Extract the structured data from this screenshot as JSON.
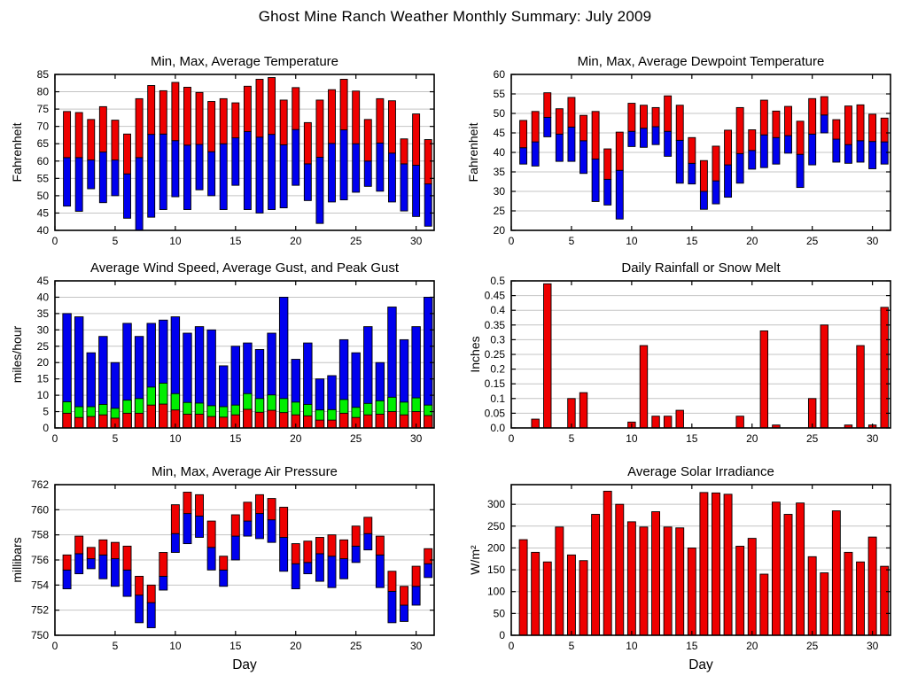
{
  "title": "Ghost Mine Ranch Weather Monthly Summary: July 2009",
  "days": [
    1,
    2,
    3,
    4,
    5,
    6,
    7,
    8,
    9,
    10,
    11,
    12,
    13,
    14,
    15,
    16,
    17,
    18,
    19,
    20,
    21,
    22,
    23,
    24,
    25,
    26,
    27,
    28,
    29,
    30,
    31
  ],
  "colors": {
    "red": "#ee0000",
    "blue": "#0000ee",
    "green": "#00ee00",
    "grid": "#c4c4c4",
    "border": "#000000"
  },
  "chart_data": [
    {
      "id": "temperature",
      "type": "bar",
      "variant": "range",
      "title": "Min, Max, Average Temperature",
      "ylabel": "Fahrenheit",
      "xlabel": "",
      "xlim": [
        0,
        31.5
      ],
      "ylim": [
        40,
        85
      ],
      "xticks": [
        0,
        5,
        10,
        15,
        20,
        25,
        30
      ],
      "xtick_labels": [
        "0",
        "5",
        "10",
        "15",
        "20",
        "25",
        "30"
      ],
      "yticks": [
        40,
        45,
        50,
        55,
        60,
        65,
        70,
        75,
        80,
        85
      ],
      "ytick_labels": [
        "40",
        "45",
        "50",
        "55",
        "60",
        "65",
        "70",
        "75",
        "80",
        "85"
      ],
      "segment_colors": {
        "low": "#0000ee",
        "high": "#ee0000"
      },
      "series": [
        {
          "name": "Min",
          "values": [
            47,
            45.5,
            52,
            48,
            50,
            43.5,
            40,
            43.8,
            46,
            49.7,
            46,
            51.7,
            50,
            46,
            53,
            46,
            45,
            46,
            46.5,
            53,
            48.6,
            42,
            48.2,
            48.8,
            51,
            52.7,
            51.3,
            48.2,
            45.6,
            44,
            41.2
          ]
        },
        {
          "name": "Average",
          "values": [
            61,
            61,
            60.3,
            62.6,
            60.3,
            56.3,
            61,
            67.7,
            67.8,
            65.9,
            64.6,
            64.8,
            62.7,
            65,
            66.7,
            68.5,
            66.9,
            67.7,
            64.7,
            69.1,
            59.2,
            61.1,
            65.1,
            69,
            65,
            60,
            65.2,
            62.3,
            59.2,
            58.8,
            53.4
          ]
        },
        {
          "name": "Max",
          "values": [
            74.3,
            74,
            72,
            75.7,
            71.8,
            67.8,
            78,
            81.8,
            80.3,
            82.7,
            81.3,
            79.8,
            77.2,
            78,
            76.8,
            81.6,
            83.6,
            84.1,
            77.6,
            81.2,
            71.1,
            77.6,
            80.6,
            83.6,
            80.2,
            72,
            78,
            77.4,
            66.4,
            73.6,
            66.2
          ]
        }
      ]
    },
    {
      "id": "dewpoint",
      "type": "bar",
      "variant": "range",
      "title": "Min, Max, Average Dewpoint Temperature",
      "ylabel": "Fahrenheit",
      "xlabel": "",
      "xlim": [
        0,
        31.5
      ],
      "ylim": [
        20,
        60
      ],
      "xticks": [
        0,
        5,
        10,
        15,
        20,
        25,
        30
      ],
      "xtick_labels": [
        "0",
        "5",
        "10",
        "15",
        "20",
        "25",
        "30"
      ],
      "yticks": [
        20,
        25,
        30,
        35,
        40,
        45,
        50,
        55,
        60
      ],
      "ytick_labels": [
        "20",
        "25",
        "30",
        "35",
        "40",
        "45",
        "50",
        "55",
        "60"
      ],
      "segment_colors": {
        "low": "#0000ee",
        "high": "#ee0000"
      },
      "series": [
        {
          "name": "Min",
          "values": [
            37,
            36.5,
            44,
            37.7,
            37.7,
            34.6,
            27.4,
            26.5,
            22.9,
            41.5,
            41.3,
            42,
            39,
            32.1,
            31.9,
            25.4,
            26.8,
            28.5,
            32.1,
            35.7,
            36.1,
            37,
            39.8,
            31,
            36.8,
            45,
            37.5,
            37.2,
            37.5,
            35.8,
            37
          ]
        },
        {
          "name": "Average",
          "values": [
            41.2,
            42.7,
            49,
            44.7,
            46.5,
            43,
            38.3,
            33.1,
            35.4,
            45.4,
            46.2,
            46.6,
            45.4,
            43.1,
            37.2,
            30,
            32.7,
            36.8,
            39.7,
            40.5,
            44.5,
            43.8,
            44.3,
            39.5,
            44.7,
            49.6,
            43.4,
            42,
            43,
            42.8,
            42.7
          ]
        },
        {
          "name": "Max",
          "values": [
            48.2,
            50.5,
            55.3,
            51.2,
            54.1,
            49.5,
            50.5,
            40.9,
            45.2,
            52.6,
            52.1,
            51.5,
            54.5,
            52.1,
            43.8,
            37.9,
            41.6,
            45.7,
            51.5,
            45.8,
            53.4,
            50.6,
            51.8,
            48,
            53.8,
            54.3,
            48.4,
            51.9,
            52.2,
            49.8,
            48.8
          ]
        }
      ]
    },
    {
      "id": "wind",
      "type": "bar",
      "variant": "overlay",
      "title": "Average Wind Speed, Average Gust, and Peak Gust",
      "ylabel": "miles/hour",
      "xlabel": "",
      "xlim": [
        0,
        31.5
      ],
      "ylim": [
        0,
        45
      ],
      "xticks": [
        0,
        5,
        10,
        15,
        20,
        25,
        30
      ],
      "xtick_labels": [
        "0",
        "5",
        "10",
        "15",
        "20",
        "25",
        "30"
      ],
      "yticks": [
        0,
        5,
        10,
        15,
        20,
        25,
        30,
        35,
        40,
        45
      ],
      "ytick_labels": [
        "0",
        "5",
        "10",
        "15",
        "20",
        "25",
        "30",
        "35",
        "40",
        "45"
      ],
      "series": [
        {
          "name": "Average Wind Speed",
          "color": "#ee0000",
          "values": [
            4.5,
            3.2,
            3.5,
            4,
            3,
            4.5,
            4.5,
            7,
            7.3,
            5.5,
            4.2,
            4.2,
            3.5,
            3.3,
            4,
            5.7,
            4.8,
            5.4,
            4.7,
            4,
            3.7,
            2.4,
            2.4,
            4.5,
            3.2,
            4,
            4.2,
            5,
            4,
            5,
            3.8
          ]
        },
        {
          "name": "Average Gust",
          "color": "#00ee00",
          "values": [
            8,
            6.5,
            6.5,
            7.2,
            6,
            8.5,
            9,
            12.5,
            13.7,
            10.5,
            7.8,
            7.6,
            6.8,
            6.5,
            7,
            10.5,
            9,
            10.1,
            9,
            7.9,
            7.2,
            5.5,
            5.6,
            8.7,
            6.3,
            7.5,
            8.3,
            9.4,
            7.9,
            9.2,
            7
          ]
        },
        {
          "name": "Peak Gust",
          "color": "#0000ee",
          "values": [
            35,
            34,
            23,
            28,
            20,
            32,
            28,
            32,
            33,
            34,
            29,
            31,
            30,
            19,
            25,
            26,
            24,
            29,
            40,
            21,
            26,
            15,
            16,
            27,
            23,
            31,
            20,
            37,
            27,
            31,
            40
          ]
        }
      ]
    },
    {
      "id": "rain",
      "type": "bar",
      "variant": "single",
      "title": "Daily Rainfall or Snow Melt",
      "ylabel": "Inches",
      "xlabel": "",
      "xlim": [
        0,
        31.5
      ],
      "ylim": [
        0,
        0.5
      ],
      "xticks": [
        0,
        5,
        10,
        15,
        20,
        25,
        30
      ],
      "xtick_labels": [
        "0",
        "5",
        "10",
        "15",
        "20",
        "25",
        "30"
      ],
      "yticks": [
        0,
        0.05,
        0.1,
        0.15,
        0.2,
        0.25,
        0.3,
        0.35,
        0.4,
        0.45,
        0.5
      ],
      "ytick_labels": [
        "0.0",
        "0.05",
        "0.1",
        "0.15",
        "0.2",
        "0.25",
        "0.3",
        "0.35",
        "0.4",
        "0.45",
        "0.5"
      ],
      "color": "#ee0000",
      "values": [
        0,
        0.03,
        0.49,
        0,
        0.1,
        0.12,
        0,
        0,
        0,
        0.02,
        0.28,
        0.04,
        0.04,
        0.06,
        0,
        0,
        0,
        0,
        0.04,
        0,
        0.33,
        0.01,
        0,
        0,
        0.1,
        0.35,
        0,
        0.01,
        0.28,
        0.01,
        0.41
      ]
    },
    {
      "id": "pressure",
      "type": "bar",
      "variant": "range",
      "title": "Min, Max, Average Air Pressure",
      "ylabel": "millibars",
      "xlabel": "Day",
      "xlim": [
        0,
        31.5
      ],
      "ylim": [
        750,
        762
      ],
      "xticks": [
        0,
        5,
        10,
        15,
        20,
        25,
        30
      ],
      "xtick_labels": [
        "0",
        "5",
        "10",
        "15",
        "20",
        "25",
        "30"
      ],
      "yticks": [
        750,
        752,
        754,
        756,
        758,
        760,
        762
      ],
      "ytick_labels": [
        "750",
        "752",
        "754",
        "756",
        "758",
        "760",
        "762"
      ],
      "segment_colors": {
        "low": "#0000ee",
        "high": "#ee0000"
      },
      "series": [
        {
          "name": "Min",
          "values": [
            753.7,
            754.9,
            755.3,
            754.5,
            753.9,
            753.1,
            751,
            750.6,
            753.6,
            756.6,
            757.3,
            757.8,
            755.2,
            753.9,
            756,
            757.9,
            757.7,
            757.4,
            755.1,
            753.7,
            754.9,
            754.3,
            753.8,
            754.5,
            755.8,
            756.8,
            753.8,
            751,
            751.1,
            752.4,
            754.6
          ]
        },
        {
          "name": "Average",
          "values": [
            755.2,
            756.5,
            756.1,
            756.4,
            756.1,
            755.2,
            753.2,
            752.6,
            754.7,
            758.1,
            759.7,
            759.5,
            757,
            755.2,
            757.9,
            759.1,
            759.7,
            759.2,
            757.8,
            755.7,
            755.8,
            756.5,
            756.3,
            756.1,
            757.1,
            758.1,
            756.4,
            753.5,
            752.4,
            753.9,
            755.7
          ]
        },
        {
          "name": "Max",
          "values": [
            756.4,
            757.9,
            757,
            757.6,
            757.4,
            757.1,
            754.7,
            754,
            756.6,
            760.4,
            761.4,
            761.2,
            759.1,
            756.3,
            759.6,
            760.6,
            761.2,
            760.9,
            760.2,
            757.3,
            757.5,
            757.8,
            758,
            757.6,
            758.7,
            759.4,
            757.9,
            755.1,
            753.9,
            755.5,
            756.9
          ]
        }
      ]
    },
    {
      "id": "solar",
      "type": "bar",
      "variant": "single",
      "title": "Average Solar Irradiance",
      "ylabel": "W/m²",
      "xlabel": "Day",
      "xlim": [
        0,
        31.5
      ],
      "ylim": [
        0,
        345
      ],
      "xticks": [
        0,
        5,
        10,
        15,
        20,
        25,
        30
      ],
      "xtick_labels": [
        "0",
        "5",
        "10",
        "15",
        "20",
        "25",
        "30"
      ],
      "yticks": [
        0,
        50,
        100,
        150,
        200,
        250,
        300
      ],
      "ytick_labels": [
        "0",
        "50",
        "100",
        "150",
        "200",
        "250",
        "300"
      ],
      "color": "#ee0000",
      "values": [
        219,
        190,
        168,
        248,
        184,
        171,
        277,
        330,
        300,
        260,
        248,
        283,
        248,
        246,
        200,
        327,
        326,
        323,
        204,
        222,
        140,
        305,
        277,
        303,
        180,
        143,
        285,
        190,
        168,
        225,
        158
      ]
    }
  ]
}
